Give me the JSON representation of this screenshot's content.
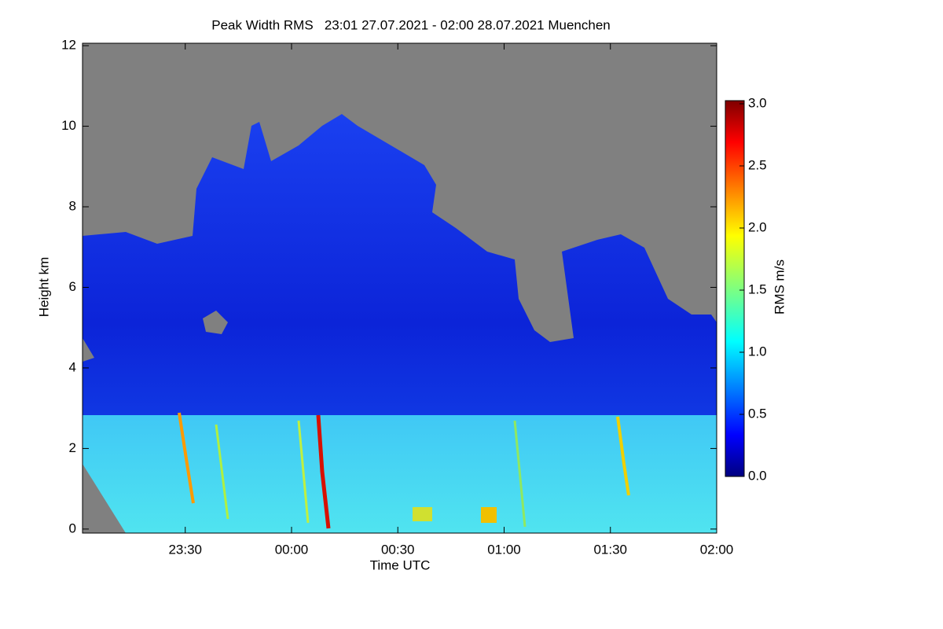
{
  "chart_data": {
    "type": "heatmap",
    "title": "Peak Width RMS   23:01 27.07.2021 - 02:00 28.07.2021 Muenchen",
    "x_label": "Time UTC",
    "y_label": "Height km",
    "xlim": [
      1,
      180
    ],
    "xticks": [
      {
        "value": 30,
        "label": "23:30"
      },
      {
        "value": 60,
        "label": "00:00"
      },
      {
        "value": 90,
        "label": "00:30"
      },
      {
        "value": 120,
        "label": "01:00"
      },
      {
        "value": 150,
        "label": "01:30"
      },
      {
        "value": 180,
        "label": "02:00"
      }
    ],
    "ylim": [
      -0.1,
      12.06
    ],
    "yticks": [
      0,
      2,
      4,
      6,
      8,
      10,
      12
    ],
    "colorbar": {
      "label": "RMS m/s",
      "lim": [
        0,
        3
      ],
      "colormap": "jet",
      "ticks": [
        {
          "value": 0,
          "label": "0.0"
        },
        {
          "value": 0.5,
          "label": "0.5"
        },
        {
          "value": 1,
          "label": "1.0"
        },
        {
          "value": 1.5,
          "label": "1.5"
        },
        {
          "value": 2,
          "label": "2.0"
        },
        {
          "value": 2.5,
          "label": "2.5"
        },
        {
          "value": 3,
          "label": "3.0"
        }
      ]
    }
  }
}
